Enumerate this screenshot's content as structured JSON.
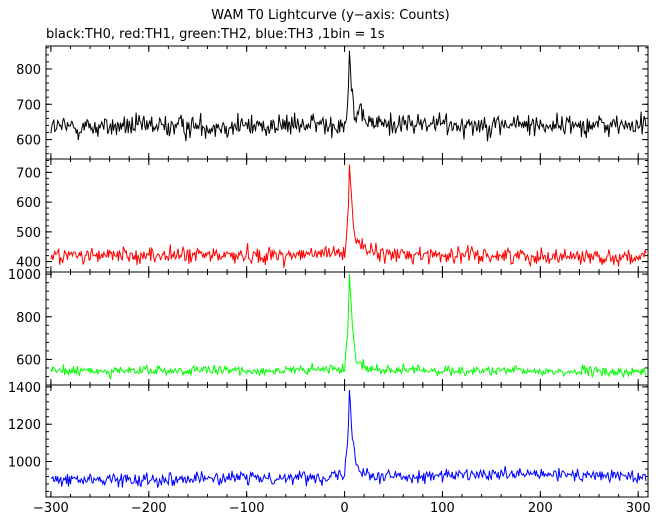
{
  "title": "WAM T0 Lightcurve (y−axis: Counts)",
  "subtitle": "black:TH0, red:TH1, green:TH2, blue:TH3 ,1bin = 1s",
  "chart_data": {
    "type": "line",
    "xlim": [
      -305,
      310
    ],
    "x_ticks": [
      -300,
      -200,
      -100,
      0,
      100,
      200,
      300
    ],
    "x_tick_labels": [
      "−300",
      "−200",
      "−100",
      "0",
      "100",
      "200",
      "300"
    ],
    "bin_seconds": 1,
    "series": [
      {
        "name": "TH0",
        "color": "#000000",
        "ylim": [
          545,
          865
        ],
        "y_ticks": [
          600,
          700,
          800
        ],
        "y_tick_labels": [
          "600",
          "700",
          "800"
        ],
        "baseline": 640,
        "noise": 28,
        "peak_value": 860,
        "peak_x": 5,
        "peak_width": 2.2,
        "shape_points": [
          [
            -300,
            635
          ],
          [
            -50,
            640
          ],
          [
            0,
            645
          ],
          [
            3,
            700
          ],
          [
            5,
            860
          ],
          [
            7,
            750
          ],
          [
            10,
            670
          ],
          [
            30,
            645
          ],
          [
            310,
            640
          ]
        ]
      },
      {
        "name": "TH1",
        "color": "#ff0000",
        "ylim": [
          365,
          745
        ],
        "y_ticks": [
          400,
          500,
          600,
          700
        ],
        "y_tick_labels": [
          "400",
          "500",
          "600",
          "700"
        ],
        "baseline": 420,
        "noise": 24,
        "peak_value": 735,
        "peak_x": 5,
        "peak_width": 2.5,
        "shape_points": [
          [
            -300,
            420
          ],
          [
            -50,
            422
          ],
          [
            0,
            430
          ],
          [
            3,
            520
          ],
          [
            5,
            735
          ],
          [
            8,
            560
          ],
          [
            12,
            470
          ],
          [
            30,
            425
          ],
          [
            310,
            415
          ]
        ]
      },
      {
        "name": "TH2",
        "color": "#00ff00",
        "ylim": [
          480,
          1010
        ],
        "y_ticks": [
          600,
          800,
          1000
        ],
        "y_tick_labels": [
          "600",
          "800",
          "1000"
        ],
        "baseline": 545,
        "noise": 20,
        "peak_value": 995,
        "peak_x": 5,
        "peak_width": 2.5,
        "shape_points": [
          [
            -300,
            545
          ],
          [
            -50,
            548
          ],
          [
            0,
            555
          ],
          [
            3,
            700
          ],
          [
            5,
            995
          ],
          [
            8,
            760
          ],
          [
            12,
            600
          ],
          [
            30,
            550
          ],
          [
            310,
            540
          ]
        ]
      },
      {
        "name": "TH3",
        "color": "#0000ff",
        "ylim": [
          810,
          1410
        ],
        "y_ticks": [
          1000,
          1200,
          1400
        ],
        "y_tick_labels": [
          "1000",
          "1200",
          "1400"
        ],
        "baseline": 910,
        "noise": 30,
        "peak_value": 1395,
        "peak_x": 5,
        "peak_width": 2.5,
        "shape_points": [
          [
            -300,
            900
          ],
          [
            -50,
            915
          ],
          [
            0,
            925
          ],
          [
            3,
            1100
          ],
          [
            5,
            1395
          ],
          [
            8,
            1150
          ],
          [
            12,
            980
          ],
          [
            30,
            920
          ],
          [
            200,
            930
          ],
          [
            310,
            920
          ]
        ]
      }
    ],
    "grid": false
  }
}
